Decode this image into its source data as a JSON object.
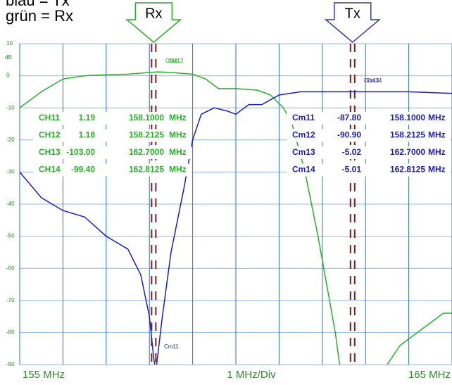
{
  "chart_data": {
    "type": "line",
    "legend": [
      "blau = Tx",
      "grün = Rx"
    ],
    "arrows": [
      "Rx",
      "Tx"
    ],
    "y_label": "dB",
    "x_label": "1 MHz/Div",
    "xlim": [
      155,
      165
    ],
    "xticks": [
      {
        "value": 155,
        "label": "155 MHz"
      },
      156,
      157,
      158,
      159,
      160,
      161,
      162,
      163,
      164,
      {
        "value": 165,
        "label": "165 MHz"
      }
    ],
    "ylim": [
      -90,
      10
    ],
    "yticks": [
      10,
      0,
      -10,
      -20,
      -30,
      -40,
      -50,
      -60,
      -70,
      -80,
      -90
    ],
    "grid": true,
    "markers": [
      158.1,
      162.7
    ],
    "marker_labels": [
      "CM11",
      "CM12",
      "Cm13",
      "Cm14",
      "Cm11"
    ],
    "series": [
      {
        "name": "Rx",
        "color": "#22b422",
        "x": [
          155,
          155.5,
          156,
          156.5,
          157,
          157.5,
          158,
          158.2,
          158.5,
          159,
          159.3,
          159.6,
          160,
          160.5,
          160.8,
          161.1,
          161.3,
          161.6,
          161.9,
          162.1,
          162.3,
          162.4,
          163.5,
          163.5,
          163.8,
          164.2,
          164.5,
          164.8,
          165
        ],
        "values": [
          -10,
          -5,
          -1,
          0,
          0.3,
          0.5,
          1,
          1.2,
          1,
          0.5,
          -1,
          -4,
          -4,
          -4.5,
          -6,
          -10,
          -15,
          -30,
          -50,
          -65,
          -80,
          -90,
          null,
          -90,
          -84,
          -80,
          -77,
          -74,
          -74
        ]
      },
      {
        "name": "Tx",
        "color": "#1c1cc8",
        "x": [
          155,
          155.5,
          156,
          156.5,
          157,
          157.5,
          157.8,
          158,
          158.1,
          158.15,
          158.3,
          158.5,
          158.8,
          159,
          159.2,
          159.5,
          159.8,
          160,
          160.3,
          160.6,
          160.8,
          161,
          161.5,
          162,
          163,
          164,
          165
        ],
        "values": [
          -30,
          -38,
          -42,
          -44,
          -50,
          -54,
          -62,
          -75,
          -88,
          -92,
          -75,
          -55,
          -35,
          -20,
          -12,
          -10,
          -11,
          -12,
          -9,
          -9,
          -7.5,
          -6,
          -5,
          -5,
          -5,
          -5,
          -5.5
        ]
      }
    ],
    "readout_rx": [
      [
        "CH11",
        "1.19",
        "158.1000",
        "MHz"
      ],
      [
        "CH12",
        "1.18",
        "158.2125",
        "MHz"
      ],
      [
        "CH13",
        "-103.00",
        "162.7000",
        "MHz"
      ],
      [
        "CH14",
        "-99.40",
        "162.8125",
        "MHz"
      ]
    ],
    "readout_tx": [
      [
        "Cm11",
        "-87.80",
        "158.1000",
        "MHz"
      ],
      [
        "Cm12",
        "-90.90",
        "158.2125",
        "MHz"
      ],
      [
        "Cm13",
        "-5.02",
        "162.7000",
        "MHz"
      ],
      [
        "Cm14",
        "-5.01",
        "162.8125",
        "MHz"
      ]
    ]
  }
}
